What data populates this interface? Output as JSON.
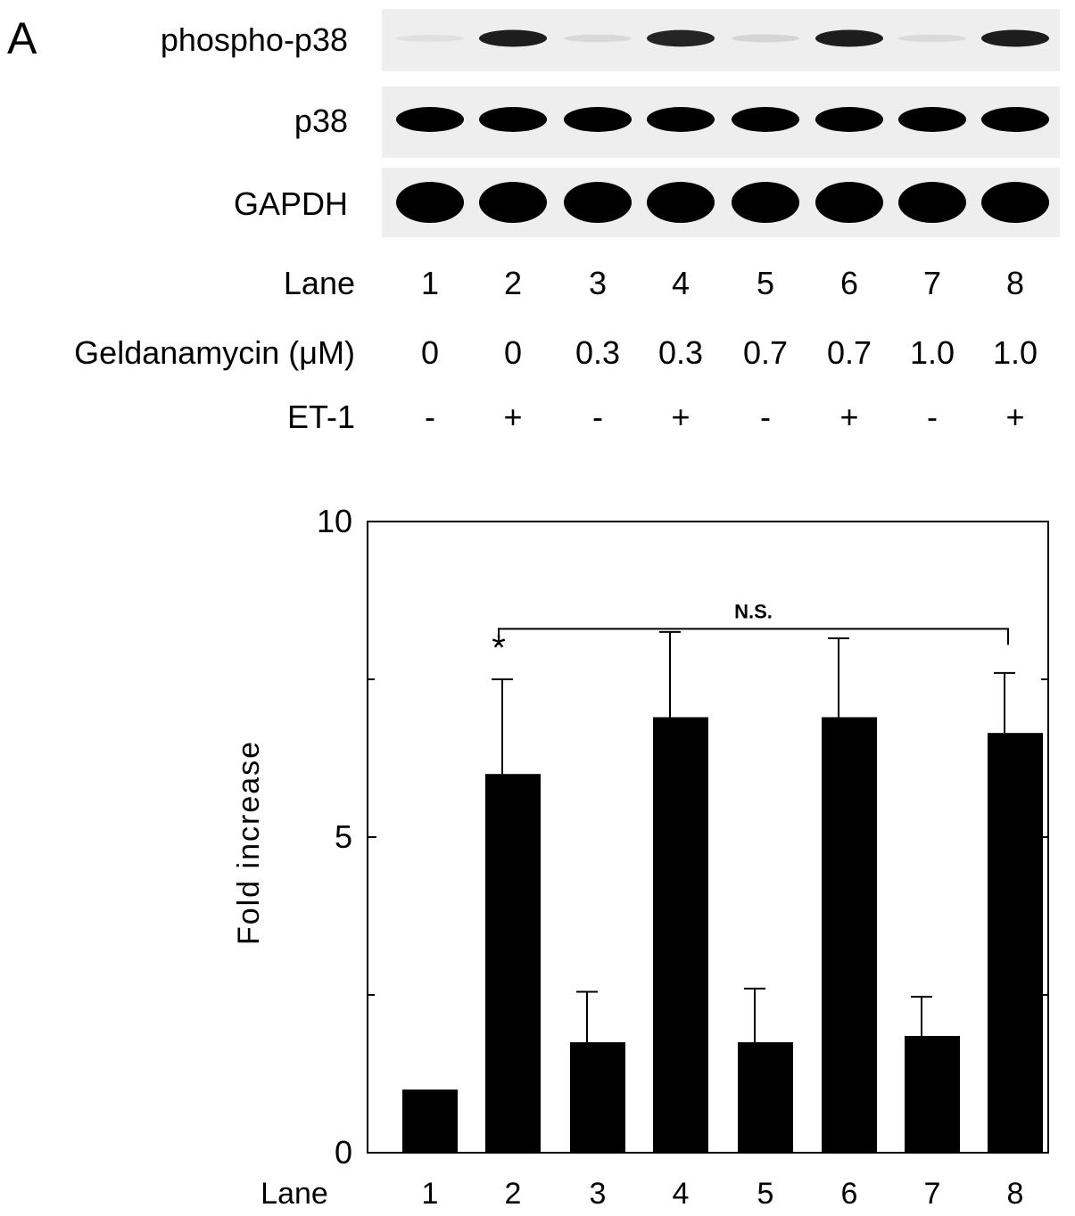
{
  "panel_label": "A",
  "blot": {
    "rows": [
      {
        "label": "phospho-p38",
        "intensity": [
          0.05,
          0.92,
          0.12,
          0.9,
          0.15,
          0.92,
          0.1,
          0.92
        ]
      },
      {
        "label": "p38",
        "intensity": [
          1,
          1,
          1,
          1,
          1,
          1,
          1,
          1
        ]
      },
      {
        "label": "GAPDH",
        "intensity": [
          1,
          1,
          1,
          1,
          1,
          1,
          1,
          1
        ]
      }
    ],
    "conditions": [
      {
        "label": "Lane",
        "values": [
          "1",
          "2",
          "3",
          "4",
          "5",
          "6",
          "7",
          "8"
        ]
      },
      {
        "label": "Geldanamycin (μM)",
        "values": [
          "0",
          "0",
          "0.3",
          "0.3",
          "0.7",
          "0.7",
          "1.0",
          "1.0"
        ]
      },
      {
        "label": "ET-1",
        "values": [
          "-",
          "+",
          "-",
          "+",
          "-",
          "+",
          "-",
          "+"
        ]
      }
    ]
  },
  "chart_data": {
    "type": "bar",
    "categories": [
      "1",
      "2",
      "3",
      "4",
      "5",
      "6",
      "7",
      "8"
    ],
    "values": [
      1.0,
      6.0,
      1.75,
      6.9,
      1.75,
      6.9,
      1.85,
      6.65
    ],
    "errors": [
      0.02,
      1.5,
      0.8,
      1.35,
      0.85,
      1.25,
      0.62,
      0.95
    ],
    "xlabel": "Lane",
    "ylabel": "Fold increase",
    "ylim": [
      0,
      10
    ],
    "yticks": [
      0,
      5,
      10
    ],
    "minor_ticks": [
      2.5,
      7.5
    ],
    "grid": false,
    "annotations": [
      {
        "text": "*",
        "category": "2"
      },
      {
        "text": "N.S.",
        "from": "2",
        "to": "8"
      }
    ],
    "colors": {
      "bars": "#000000"
    }
  }
}
